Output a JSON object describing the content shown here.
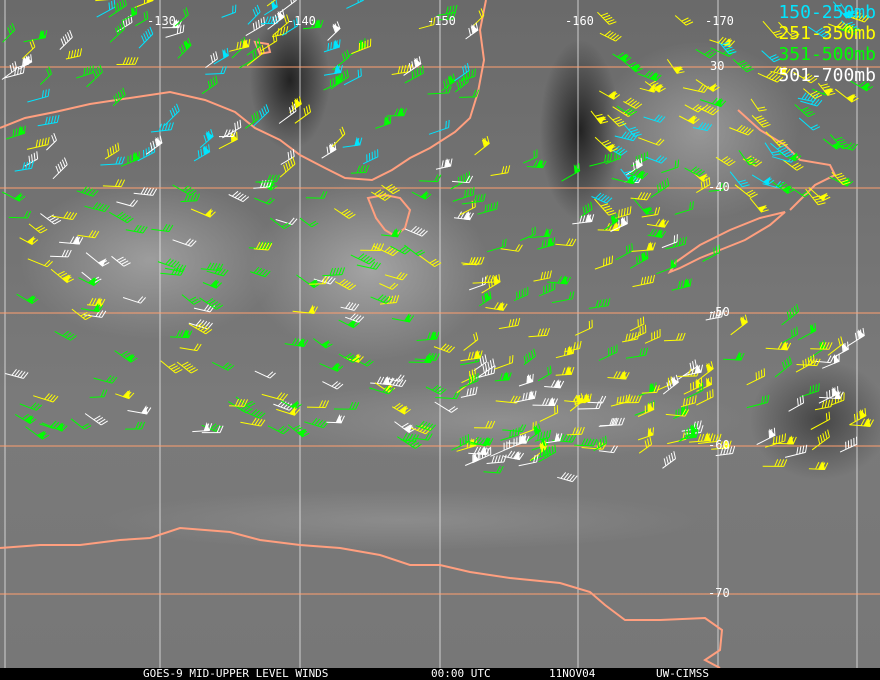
{
  "map": {
    "background": "#6e6e6e",
    "grid_color_lon": "#e8e8e8",
    "grid_color_lat": "#ff9f6f",
    "coast_color": "#ff9f7f",
    "lon_labels": [
      "-130",
      "-140",
      "-150",
      "-160",
      "-170"
    ],
    "lat_labels": [
      "30",
      "-40",
      "-50",
      "-60",
      "-70"
    ]
  },
  "legend": [
    {
      "label": "150-250mb",
      "color": "#00e5ff"
    },
    {
      "label": "251-350mb",
      "color": "#ffff00"
    },
    {
      "label": "351-500mb",
      "color": "#00ff00"
    },
    {
      "label": "501-700mb",
      "color": "#ffffff"
    }
  ],
  "footer": {
    "title": "GOES-9 MID-UPPER LEVEL WINDS",
    "time": "00:00 UTC",
    "date": "11NOV04",
    "source": "UW-CIMSS"
  }
}
